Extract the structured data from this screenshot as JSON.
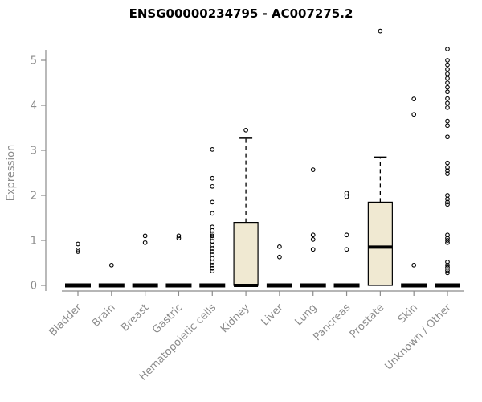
{
  "title": "ENSG00000234795 - AC007275.2",
  "chart_data": {
    "type": "boxplot",
    "title": "ENSG00000234795 - AC007275.2",
    "xlabel": "",
    "ylabel": "Expression",
    "ylim": [
      0,
      5.8
    ],
    "yticks": [
      0,
      1,
      2,
      3,
      4,
      5
    ],
    "grid": false,
    "legend": "none",
    "colors": {
      "box_fill": "#f0e9d2",
      "box_stroke": "#000000",
      "median": "#000000",
      "axis": "#8b8b8b",
      "tick_label": "#8b8b8b",
      "title": "#000000",
      "background": "#ffffff"
    },
    "categories": [
      "Bladder",
      "Brain",
      "Breast",
      "Gastric",
      "Hematopoietic cells",
      "Kidney",
      "Liver",
      "Lung",
      "Pancreas",
      "Prostate",
      "Skin",
      "Unknown / Other"
    ],
    "series": [
      {
        "category": "Bladder",
        "q1": 0,
        "median": 0,
        "q3": 0,
        "whisker_low": 0,
        "whisker_high": 0,
        "outliers": [
          0.75,
          0.79,
          0.92
        ]
      },
      {
        "category": "Brain",
        "q1": 0,
        "median": 0,
        "q3": 0,
        "whisker_low": 0,
        "whisker_high": 0,
        "outliers": [
          0.45
        ]
      },
      {
        "category": "Breast",
        "q1": 0,
        "median": 0,
        "q3": 0,
        "whisker_low": 0,
        "whisker_high": 0,
        "outliers": [
          0.95,
          1.1
        ]
      },
      {
        "category": "Gastric",
        "q1": 0,
        "median": 0,
        "q3": 0,
        "whisker_low": 0,
        "whisker_high": 0,
        "outliers": [
          1.05,
          1.1
        ]
      },
      {
        "category": "Hematopoietic cells",
        "q1": 0,
        "median": 0,
        "q3": 0,
        "whisker_low": 0,
        "whisker_high": 0,
        "outliers": [
          0.32,
          0.38,
          0.45,
          0.52,
          0.6,
          0.68,
          0.75,
          0.82,
          0.9,
          0.98,
          1.05,
          1.1,
          1.15,
          1.22,
          1.3,
          1.6,
          1.85,
          2.2,
          2.38,
          3.02
        ]
      },
      {
        "category": "Kidney",
        "q1": 0,
        "median": 0,
        "q3": 1.4,
        "whisker_low": 0,
        "whisker_high": 3.27,
        "outliers": [
          3.45
        ]
      },
      {
        "category": "Liver",
        "q1": 0,
        "median": 0,
        "q3": 0,
        "whisker_low": 0,
        "whisker_high": 0,
        "outliers": [
          0.63,
          0.86
        ]
      },
      {
        "category": "Lung",
        "q1": 0,
        "median": 0,
        "q3": 0,
        "whisker_low": 0,
        "whisker_high": 0,
        "outliers": [
          0.8,
          1.02,
          1.12,
          2.57
        ]
      },
      {
        "category": "Pancreas",
        "q1": 0,
        "median": 0,
        "q3": 0,
        "whisker_low": 0,
        "whisker_high": 0,
        "outliers": [
          0.8,
          1.12,
          1.97,
          2.05
        ]
      },
      {
        "category": "Prostate",
        "q1": 0,
        "median": 0.85,
        "q3": 1.85,
        "whisker_low": 0,
        "whisker_high": 2.85,
        "outliers": [
          5.65
        ]
      },
      {
        "category": "Skin",
        "q1": 0,
        "median": 0,
        "q3": 0,
        "whisker_low": 0,
        "whisker_high": 0,
        "outliers": [
          0.45,
          3.8,
          4.14
        ]
      },
      {
        "category": "Unknown / Other",
        "q1": 0,
        "median": 0,
        "q3": 0,
        "whisker_low": 0,
        "whisker_high": 0,
        "outliers": [
          0.28,
          0.33,
          0.4,
          0.45,
          0.52,
          0.95,
          1.0,
          1.05,
          1.12,
          1.8,
          1.85,
          1.92,
          2.0,
          2.48,
          2.55,
          2.62,
          2.72,
          3.3,
          3.55,
          3.65,
          3.95,
          4.05,
          4.15,
          4.3,
          4.4,
          4.5,
          4.6,
          4.7,
          4.8,
          4.9,
          5.0,
          5.25
        ]
      }
    ]
  }
}
